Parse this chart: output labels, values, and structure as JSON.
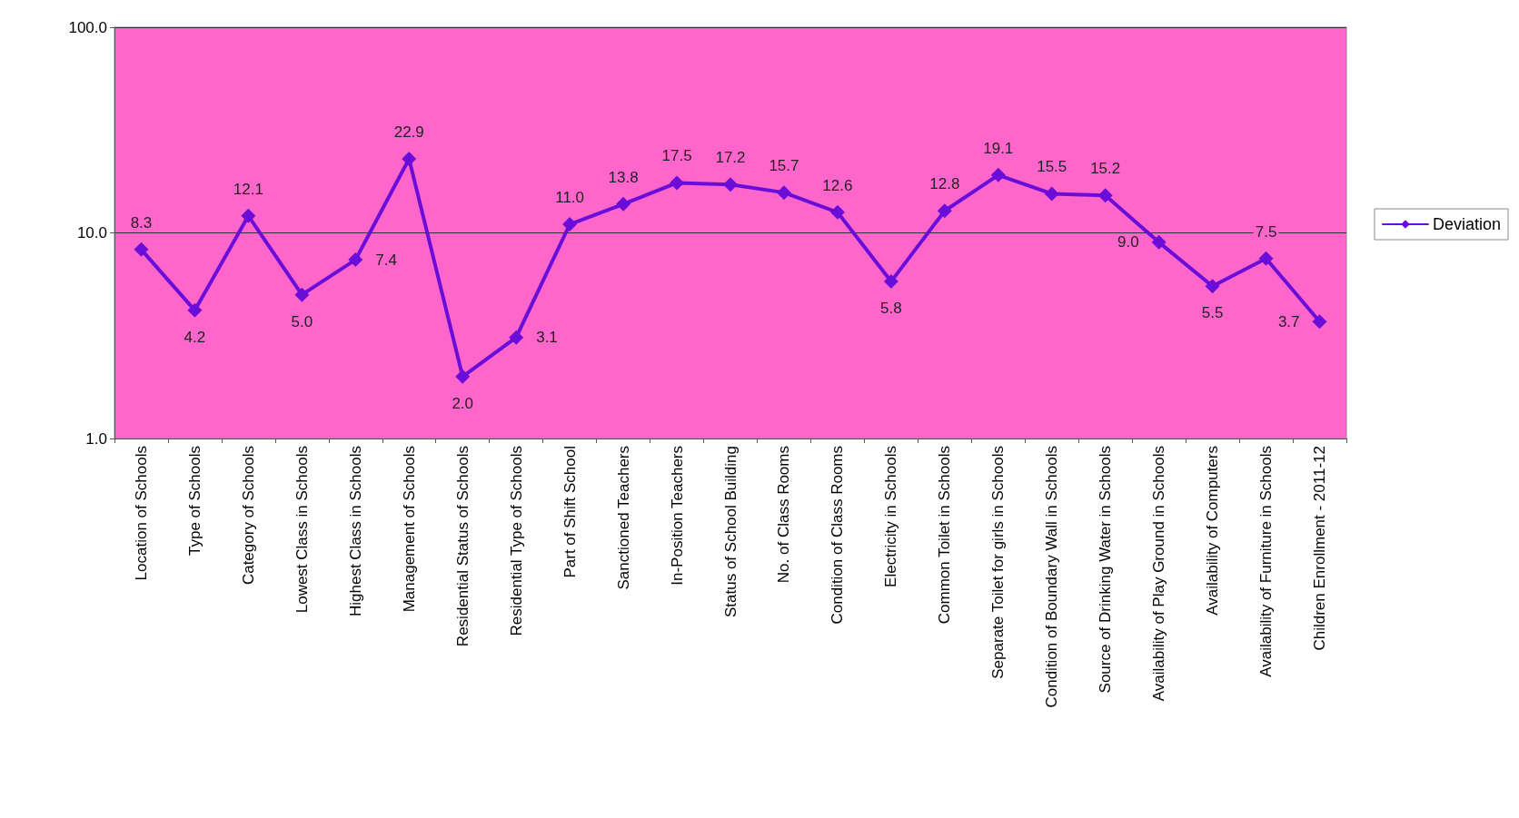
{
  "chart_data": {
    "type": "line",
    "categories": [
      "Location of Schools",
      "Type of Schools",
      "Category of Schools",
      "Lowest Class in Schools",
      "Highest Class in Schools",
      "Management of Schools",
      "Residential Status of Schools",
      "Residential Type of Schools",
      "Part of Shift School",
      "Sanctioned Teachers",
      "In-Position Teachers",
      "Status of School Building",
      "No. of Class Rooms",
      "Condition of Class Rooms",
      "Electricity in Schools",
      "Common Toilet in Schools",
      "Separate Toilet for girls in Schools",
      "Condition of Boundary Wall in Schools",
      "Source of Drinking Water in Schools",
      "Availability of Play Ground in Schools",
      "Availability of Computers",
      "Availability of Furniture in Schools",
      "Children Enrollment - 2011-12"
    ],
    "series": [
      {
        "name": "Deviation",
        "color": "#6a0dd8",
        "values": [
          8.3,
          4.2,
          12.1,
          5.0,
          7.4,
          22.9,
          2.0,
          3.1,
          11.0,
          13.8,
          17.5,
          17.2,
          15.7,
          12.6,
          5.8,
          12.8,
          19.1,
          15.5,
          15.2,
          9.0,
          5.5,
          7.5,
          3.7
        ]
      }
    ],
    "log": true,
    "ylim": [
      1,
      100
    ],
    "yticks": [
      {
        "value": 1,
        "label": "1.0"
      },
      {
        "value": 10,
        "label": "10.0"
      },
      {
        "value": 100,
        "label": "100.0"
      }
    ],
    "grid": "y",
    "legend": "right",
    "marker": "diamond",
    "line_style": "solid",
    "value_labels": [
      "8.3",
      "4.2",
      "12.1",
      "5.0",
      "7.4",
      "22.9",
      "2.0",
      "3.1",
      "11.0",
      "13.8",
      "17.5",
      "17.2",
      "15.7",
      "12.6",
      "5.8",
      "12.8",
      "19.1",
      "15.5",
      "15.2",
      "9.0",
      "5.5",
      "7.5",
      "3.7"
    ]
  }
}
